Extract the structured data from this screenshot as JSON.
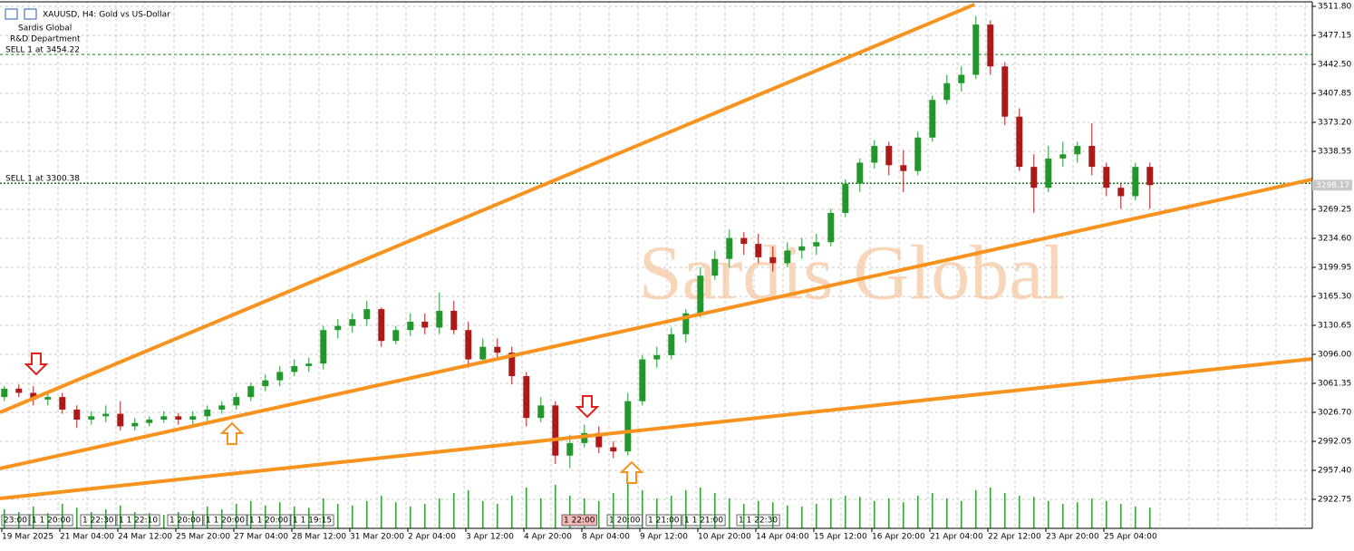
{
  "chart_data": {
    "type": "candlestick",
    "title": "XAUUSD, H4:  Gold vs US-Dollar",
    "header_lines": [
      "Sardis Global",
      "R&D Department"
    ],
    "watermark": "Sardis Global",
    "levels": [
      {
        "label": "SELL 1 at 3454.22",
        "price": 3454.22
      },
      {
        "label": "SELL 1 at 3300.38",
        "price": 3300.38
      }
    ],
    "current_price": {
      "value": 3298.17,
      "label": "3298.17"
    },
    "ylim": [
      2888.1,
      3517.2
    ],
    "xlim": [
      -0.3,
      90.2
    ],
    "yticks": [
      {
        "value": 3511.8,
        "label": "3511.80"
      },
      3477.15,
      {
        "value": 3442.5,
        "label": "3442.50"
      },
      3407.85,
      {
        "value": 3373.2,
        "label": "3373.20"
      },
      3338.55,
      3269.25,
      {
        "value": 3234.6,
        "label": "3234.60"
      },
      3199.95,
      {
        "value": 3165.3,
        "label": "3165.30"
      },
      3130.65,
      {
        "value": 3096,
        "label": "3096.00"
      },
      3061.35,
      {
        "value": 3026.7,
        "label": "3026.70"
      },
      2992.05,
      {
        "value": 2957.4,
        "label": "2957.40"
      },
      2922.75
    ],
    "x_labels": [
      "19 Mar 2025",
      "21 Mar 04:00",
      "24 Mar 12:00",
      "25 Mar 20:00",
      "27 Mar 04:00",
      "28 Mar 12:00",
      "31 Mar 20:00",
      "2 Apr 04:00",
      "3 Apr 12:00",
      "4 Apr 20:00",
      "8 Apr 04:00",
      "9 Apr 12:00",
      "10 Apr 20:00",
      "14 Apr 04:00",
      "15 Apr 12:00",
      "16 Apr 20:00",
      "21 Apr 04:00",
      "22 Apr 12:00",
      "23 Apr 20:00",
      "25 Apr 04:00"
    ],
    "session_markers": [
      "23:00",
      "1 1 20:00",
      "1 22:30",
      "1 1 22:10",
      "1 20:00",
      "1 1 20:00",
      "1 1 20:00",
      "1 1 19:15",
      "1 22:00",
      "1 20:00",
      "1 21:00",
      "1 1 21:00",
      "1 1 22:30"
    ],
    "grid": true,
    "up_color": "#1f9a2a",
    "down_color": "#b01818",
    "volume_color": "#2ca02c",
    "trendline_color": "#f7931e",
    "volume_lim": [
      0,
      100
    ],
    "ohlc": [
      [
        3045,
        3058,
        3040,
        3055
      ],
      [
        3055,
        3060,
        3045,
        3050
      ],
      [
        3050,
        3058,
        3035,
        3042
      ],
      [
        3042,
        3050,
        3035,
        3045
      ],
      [
        3045,
        3050,
        3025,
        3030
      ],
      [
        3030,
        3035,
        3008,
        3018
      ],
      [
        3018,
        3028,
        3012,
        3022
      ],
      [
        3022,
        3035,
        3015,
        3025
      ],
      [
        3025,
        3040,
        3005,
        3010
      ],
      [
        3010,
        3020,
        3005,
        3014
      ],
      [
        3014,
        3022,
        3010,
        3018
      ],
      [
        3018,
        3028,
        3014,
        3022
      ],
      [
        3022,
        3026,
        3012,
        3018
      ],
      [
        3018,
        3028,
        3012,
        3022
      ],
      [
        3022,
        3035,
        3015,
        3030
      ],
      [
        3030,
        3040,
        3025,
        3035
      ],
      [
        3035,
        3050,
        3030,
        3045
      ],
      [
        3045,
        3062,
        3040,
        3058
      ],
      [
        3058,
        3072,
        3052,
        3065
      ],
      [
        3065,
        3082,
        3058,
        3075
      ],
      [
        3075,
        3090,
        3070,
        3082
      ],
      [
        3082,
        3092,
        3075,
        3085
      ],
      [
        3085,
        3130,
        3078,
        3125
      ],
      [
        3125,
        3138,
        3115,
        3130
      ],
      [
        3130,
        3145,
        3122,
        3138
      ],
      [
        3138,
        3160,
        3130,
        3150
      ],
      [
        3150,
        3152,
        3105,
        3112
      ],
      [
        3112,
        3130,
        3108,
        3125
      ],
      [
        3125,
        3145,
        3118,
        3135
      ],
      [
        3135,
        3145,
        3120,
        3128
      ],
      [
        3128,
        3170,
        3120,
        3148
      ],
      [
        3148,
        3160,
        3120,
        3125
      ],
      [
        3125,
        3135,
        3080,
        3090
      ],
      [
        3090,
        3115,
        3085,
        3105
      ],
      [
        3105,
        3115,
        3090,
        3098
      ],
      [
        3098,
        3105,
        3060,
        3070
      ],
      [
        3070,
        3075,
        3010,
        3020
      ],
      [
        3020,
        3045,
        3015,
        3035
      ],
      [
        3035,
        3040,
        2965,
        2975
      ],
      [
        2975,
        3000,
        2960,
        2990
      ],
      [
        2990,
        3012,
        2985,
        3002
      ],
      [
        3002,
        3010,
        2978,
        2985
      ],
      [
        2985,
        2992,
        2972,
        2980
      ],
      [
        2980,
        3050,
        2975,
        3040
      ],
      [
        3040,
        3095,
        3035,
        3090
      ],
      [
        3090,
        3105,
        3080,
        3095
      ],
      [
        3095,
        3128,
        3090,
        3120
      ],
      [
        3120,
        3150,
        3110,
        3145
      ],
      [
        3145,
        3200,
        3140,
        3190
      ],
      [
        3190,
        3220,
        3185,
        3210
      ],
      [
        3210,
        3245,
        3200,
        3235
      ],
      [
        3235,
        3242,
        3215,
        3228
      ],
      [
        3228,
        3240,
        3205,
        3212
      ],
      [
        3212,
        3225,
        3195,
        3205
      ],
      [
        3205,
        3230,
        3200,
        3220
      ],
      [
        3220,
        3235,
        3210,
        3225
      ],
      [
        3225,
        3240,
        3215,
        3230
      ],
      [
        3230,
        3270,
        3225,
        3265
      ],
      [
        3265,
        3305,
        3260,
        3300
      ],
      [
        3300,
        3330,
        3290,
        3325
      ],
      [
        3325,
        3352,
        3318,
        3345
      ],
      [
        3345,
        3350,
        3310,
        3322
      ],
      [
        3322,
        3340,
        3290,
        3315
      ],
      [
        3315,
        3362,
        3310,
        3355
      ],
      [
        3355,
        3405,
        3350,
        3400
      ],
      [
        3400,
        3430,
        3395,
        3420
      ],
      [
        3420,
        3440,
        3410,
        3430
      ],
      [
        3430,
        3500,
        3425,
        3490
      ],
      [
        3490,
        3495,
        3430,
        3440
      ],
      [
        3440,
        3445,
        3370,
        3380
      ],
      [
        3380,
        3390,
        3315,
        3320
      ],
      [
        3320,
        3335,
        3265,
        3295
      ],
      [
        3295,
        3345,
        3290,
        3330
      ],
      [
        3330,
        3350,
        3320,
        3335
      ],
      [
        3335,
        3350,
        3325,
        3345
      ],
      [
        3345,
        3372,
        3310,
        3320
      ],
      [
        3320,
        3325,
        3285,
        3295
      ],
      [
        3295,
        3300,
        3270,
        3285
      ],
      [
        3285,
        3325,
        3280,
        3320
      ],
      [
        3320,
        3325,
        3270,
        3298.17
      ]
    ],
    "volume": [
      35,
      30,
      40,
      28,
      45,
      38,
      30,
      35,
      42,
      30,
      28,
      25,
      30,
      32,
      40,
      35,
      45,
      50,
      42,
      48,
      40,
      38,
      55,
      45,
      42,
      50,
      60,
      48,
      40,
      45,
      55,
      65,
      70,
      50,
      45,
      60,
      75,
      55,
      80,
      60,
      55,
      50,
      65,
      85,
      70,
      55,
      60,
      70,
      75,
      65,
      55,
      45,
      50,
      48,
      42,
      40,
      45,
      55,
      60,
      58,
      50,
      55,
      48,
      60,
      65,
      55,
      50,
      70,
      75,
      65,
      60,
      58,
      50,
      45,
      48,
      55,
      50,
      45,
      40,
      38
    ],
    "trendlines": [
      {
        "x": [
          -0.3,
          66.9
        ],
        "y": [
          3026.7,
          3514.0
        ]
      },
      {
        "x": [
          -0.3,
          90.2
        ],
        "y": [
          2959.6,
          3305.0
        ]
      },
      {
        "x": [
          -0.3,
          90.2
        ],
        "y": [
          2923.8,
          3090.6
        ]
      }
    ]
  }
}
